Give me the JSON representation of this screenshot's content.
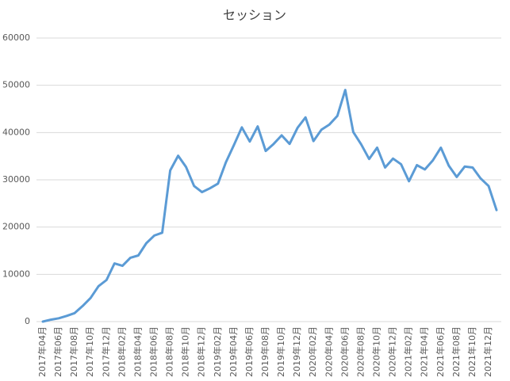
{
  "chart_data": {
    "type": "line",
    "title": "セッション",
    "categories": [
      "2017年04月",
      null,
      "2017年06月",
      null,
      "2017年08月",
      null,
      "2017年10月",
      null,
      "2017年12月",
      null,
      "2018年02月",
      null,
      "2018年04月",
      null,
      "2018年06月",
      null,
      "2018年08月",
      null,
      "2018年10月",
      null,
      "2018年12月",
      null,
      "2019年02月",
      null,
      "2019年04月",
      null,
      "2019年06月",
      null,
      "2019年08月",
      null,
      "2019年10月",
      null,
      "2019年12月",
      null,
      "2020年02月",
      null,
      "2020年04月",
      null,
      "2020年06月",
      null,
      "2020年08月",
      null,
      "2020年10月",
      null,
      "2020年12月",
      null,
      "2021年02月",
      null,
      "2021年04月",
      null,
      "2021年06月",
      null,
      "2021年08月",
      null,
      "2021年10月",
      null,
      "2021年12月",
      null
    ],
    "values": [
      0,
      400,
      700,
      1200,
      1800,
      3300,
      5000,
      7500,
      8800,
      12300,
      11800,
      13500,
      14000,
      16600,
      18200,
      18800,
      32000,
      35100,
      32700,
      28700,
      27400,
      28200,
      29200,
      33700,
      37300,
      41100,
      38100,
      41300,
      36100,
      37600,
      39400,
      37600,
      41000,
      43200,
      38200,
      40600,
      41700,
      43500,
      49000,
      40100,
      37500,
      34400,
      36800,
      32600,
      34500,
      33300,
      29700,
      33100,
      32200,
      34100,
      36800,
      33000,
      30600,
      32800,
      32600,
      30300,
      28700,
      23600
    ],
    "color": "#5b9bd5",
    "ylim": [
      0,
      60000
    ],
    "yticks": [
      0,
      10000,
      20000,
      30000,
      40000,
      50000,
      60000
    ],
    "grid": true
  }
}
